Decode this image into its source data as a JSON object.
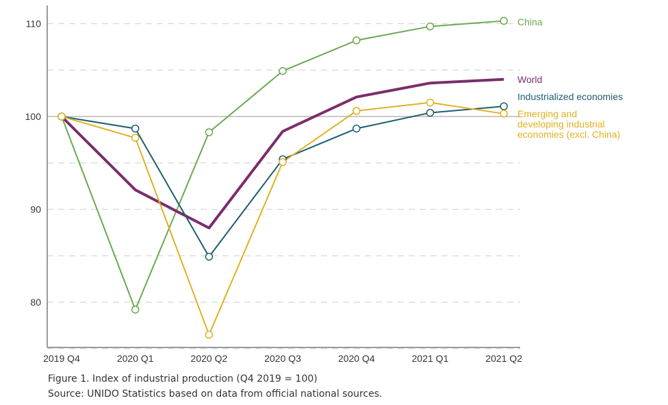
{
  "chart_data": {
    "type": "line",
    "title": "",
    "xlabel": "",
    "ylabel": "",
    "categories": [
      "2019 Q4",
      "2020 Q1",
      "2020 Q2",
      "2020 Q3",
      "2020 Q4",
      "2021 Q1",
      "2021 Q2"
    ],
    "ylim": [
      75,
      112
    ],
    "y_ticks": [
      80,
      90,
      100,
      110
    ],
    "grid": "horizontal dashed",
    "reference_line": 100,
    "legend": "labels at right end of lines",
    "series": [
      {
        "name": "China",
        "color": "#6aa84f",
        "markers": true,
        "values": [
          100,
          79.2,
          98.3,
          104.9,
          108.2,
          109.7,
          110.3
        ]
      },
      {
        "name": "World",
        "color": "#7b2d6b",
        "markers": false,
        "values": [
          100,
          92.1,
          88.0,
          98.4,
          102.1,
          103.6,
          104.0
        ]
      },
      {
        "name": "Industrialized economies",
        "color": "#1b5e6e",
        "markers": true,
        "values": [
          100,
          98.7,
          84.9,
          95.4,
          98.7,
          100.4,
          101.1
        ]
      },
      {
        "name": "Emerging and developing industrial economies (excl. China)",
        "color": "#e0b020",
        "markers": true,
        "values": [
          100,
          97.7,
          76.5,
          95.1,
          100.6,
          101.5,
          100.3
        ]
      }
    ]
  },
  "labels": {
    "china": "China",
    "world": "World",
    "industrialized": "Industrialized economies",
    "emerging_line1": "Emerging and",
    "emerging_line2": "developing industrial",
    "emerging_line3": "economies (excl. China)"
  },
  "caption": {
    "title": "Figure 1. Index of industrial production (Q4 2019 = 100)",
    "source": "Source: UNIDO Statistics based on data from official national sources."
  }
}
